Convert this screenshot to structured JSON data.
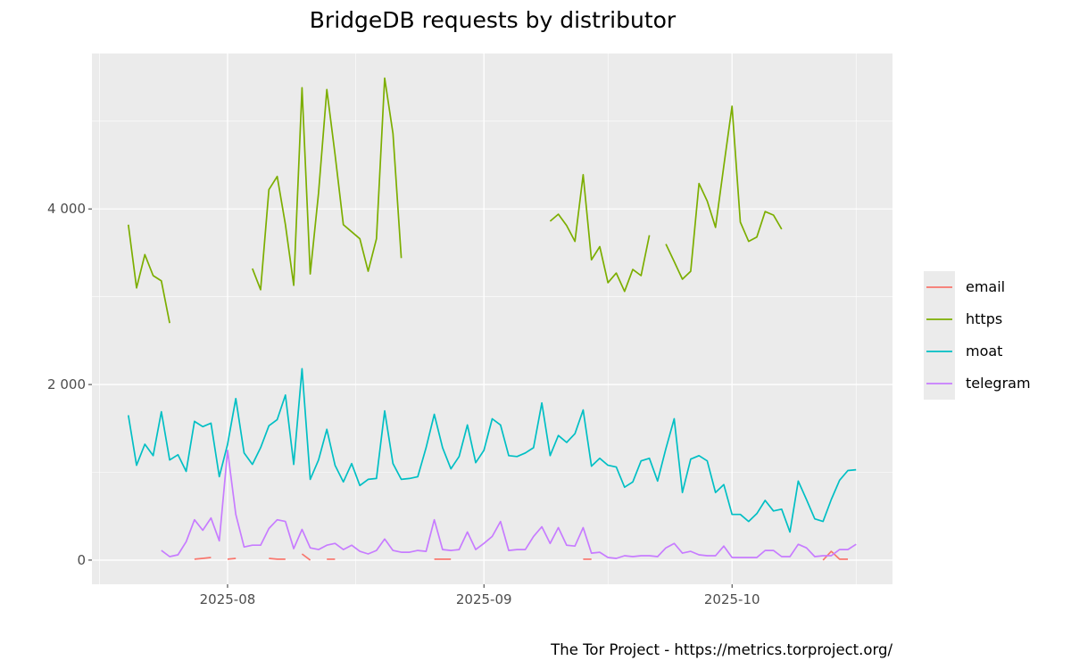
{
  "chart_data": {
    "type": "line",
    "title": "BridgeDB requests by distributor",
    "caption": "The Tor Project - https://metrics.torproject.org/",
    "xlabel": "",
    "ylabel": "",
    "start_date": "2025-07-20",
    "x_ticks": [
      {
        "date": "2025-08-01",
        "label": "2025-08"
      },
      {
        "date": "2025-09-01",
        "label": "2025-09"
      },
      {
        "date": "2025-10-01",
        "label": "2025-10"
      }
    ],
    "y_ticks": [
      {
        "value": 0,
        "label": "0"
      },
      {
        "value": 2000,
        "label": "2 000"
      },
      {
        "value": 4000,
        "label": "4 000"
      }
    ],
    "ylim": [
      -275,
      5770
    ],
    "grid": true,
    "legend_position": "right",
    "series": [
      {
        "name": "email",
        "color": "#F8766D",
        "values": [
          null,
          null,
          null,
          null,
          null,
          null,
          null,
          null,
          10,
          20,
          30,
          null,
          10,
          20,
          null,
          null,
          null,
          20,
          10,
          10,
          null,
          70,
          0,
          null,
          10,
          10,
          null,
          null,
          null,
          null,
          null,
          null,
          null,
          null,
          null,
          null,
          null,
          10,
          10,
          10,
          null,
          null,
          null,
          null,
          null,
          null,
          null,
          null,
          null,
          null,
          null,
          null,
          null,
          null,
          null,
          10,
          10,
          null,
          null,
          null,
          null,
          null,
          null,
          null,
          null,
          null,
          null,
          null,
          null,
          null,
          null,
          null,
          null,
          null,
          null,
          null,
          null,
          null,
          null,
          null,
          null,
          null,
          null,
          null,
          0,
          100,
          10,
          10,
          null
        ]
      },
      {
        "name": "https",
        "color": "#7CAE00",
        "values": [
          3820,
          3100,
          3480,
          3240,
          3180,
          2700,
          null,
          null,
          null,
          null,
          null,
          null,
          null,
          null,
          null,
          3320,
          3080,
          4220,
          4370,
          3820,
          3130,
          5380,
          3260,
          4180,
          5360,
          4620,
          3820,
          3740,
          3660,
          3290,
          3660,
          5490,
          4860,
          3440,
          null,
          null,
          null,
          null,
          null,
          null,
          null,
          null,
          null,
          null,
          null,
          null,
          null,
          null,
          null,
          null,
          null,
          3860,
          3940,
          3810,
          3630,
          4390,
          3420,
          3570,
          3160,
          3270,
          3060,
          3310,
          3240,
          3700,
          null,
          3600,
          3400,
          3200,
          3290,
          4290,
          4090,
          3790,
          4490,
          5170,
          3850,
          3630,
          3680,
          3970,
          3930,
          3770,
          null,
          null,
          null,
          null,
          null,
          null,
          null,
          null,
          null
        ]
      },
      {
        "name": "moat",
        "color": "#00BFC4",
        "values": [
          1650,
          1080,
          1320,
          1190,
          1690,
          1140,
          1200,
          1010,
          1580,
          1520,
          1560,
          950,
          1320,
          1840,
          1220,
          1090,
          1280,
          1530,
          1600,
          1880,
          1090,
          2180,
          920,
          1140,
          1490,
          1080,
          890,
          1100,
          850,
          920,
          930,
          1700,
          1100,
          920,
          930,
          950,
          1280,
          1660,
          1280,
          1040,
          1180,
          1540,
          1110,
          1250,
          1610,
          1540,
          1190,
          1180,
          1220,
          1280,
          1790,
          1190,
          1420,
          1340,
          1440,
          1710,
          1070,
          1160,
          1080,
          1060,
          830,
          890,
          1130,
          1160,
          900,
          1270,
          1610,
          770,
          1150,
          1190,
          1130,
          770,
          860,
          520,
          520,
          440,
          530,
          680,
          560,
          580,
          320,
          900,
          690,
          470,
          440,
          690,
          910,
          1020,
          1030
        ]
      },
      {
        "name": "telegram",
        "color": "#C77CFF",
        "values": [
          null,
          null,
          null,
          null,
          110,
          40,
          60,
          210,
          460,
          340,
          480,
          220,
          1250,
          520,
          150,
          170,
          170,
          360,
          460,
          440,
          130,
          350,
          140,
          120,
          170,
          190,
          120,
          170,
          100,
          70,
          110,
          240,
          110,
          90,
          90,
          110,
          100,
          460,
          120,
          110,
          120,
          320,
          120,
          190,
          270,
          440,
          110,
          120,
          120,
          270,
          380,
          190,
          370,
          170,
          160,
          370,
          80,
          90,
          30,
          20,
          50,
          40,
          50,
          50,
          40,
          140,
          190,
          80,
          100,
          60,
          50,
          50,
          160,
          30,
          30,
          30,
          30,
          110,
          110,
          40,
          40,
          180,
          140,
          40,
          50,
          50,
          120,
          120,
          180
        ]
      }
    ]
  }
}
